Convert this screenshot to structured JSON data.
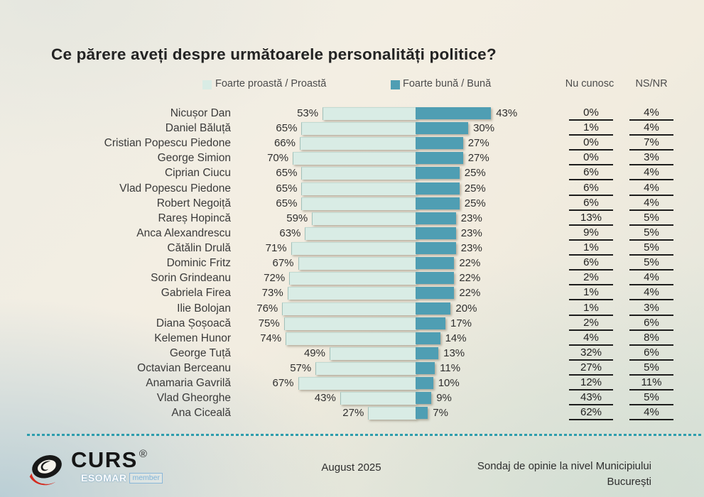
{
  "title": "Ce părere aveți despre următoarele personalități politice?",
  "legend": {
    "bad_label": "Foarte proastă / Proastă",
    "good_label": "Foarte bună / Bună"
  },
  "columns": {
    "nu_cunosc": "Nu cunosc",
    "ns_nr": "NS/NR"
  },
  "colors": {
    "bad_bar": "#d9ece5",
    "good_bar": "#4f9eb3",
    "divider_dots": "#2d9dad",
    "underline": "#1c1c1c"
  },
  "footer": {
    "date": "August 2025",
    "note_line1": "Sondaj de opinie la nivel Municipiului",
    "note_line2": "București",
    "logo": {
      "name": "CURS",
      "reg": "®",
      "esomar": "ESOMAR",
      "member": "member"
    }
  },
  "chart_data": {
    "type": "bar",
    "orientation": "diverging-horizontal",
    "title": "Ce părere aveți despre următoarele personalități politice?",
    "value_suffix": "%",
    "legend_position": "top",
    "categories": [
      "Nicușor Dan",
      "Daniel Băluță",
      "Cristian Popescu Piedone",
      "George Simion",
      "Ciprian Ciucu",
      "Vlad Popescu Piedone",
      "Robert Negoiță",
      "Rareș Hopincă",
      "Anca Alexandrescu",
      "Cătălin Drulă",
      "Dominic Fritz",
      "Sorin Grindeanu",
      "Gabriela Firea",
      "Ilie Bolojan",
      "Diana Șoșoacă",
      "Kelemen Hunor",
      "George Tuță",
      "Octavian Berceanu",
      "Anamaria Gavrilă",
      "Vlad Gheorghe",
      "Ana Ciceală"
    ],
    "series": [
      {
        "name": "Foarte proastă / Proastă",
        "side": "left",
        "color": "#d9ece5",
        "values": [
          53,
          65,
          66,
          70,
          65,
          65,
          65,
          59,
          63,
          71,
          67,
          72,
          73,
          76,
          75,
          74,
          49,
          57,
          67,
          43,
          27
        ]
      },
      {
        "name": "Foarte bună / Bună",
        "side": "right",
        "color": "#4f9eb3",
        "values": [
          43,
          30,
          27,
          27,
          25,
          25,
          25,
          23,
          23,
          23,
          22,
          22,
          22,
          20,
          17,
          14,
          13,
          11,
          10,
          9,
          7
        ]
      },
      {
        "name": "Nu cunosc",
        "display": "underlined-number-column",
        "values": [
          0,
          1,
          0,
          0,
          6,
          6,
          6,
          13,
          9,
          1,
          6,
          2,
          1,
          1,
          2,
          4,
          32,
          27,
          12,
          43,
          62
        ]
      },
      {
        "name": "NS/NR",
        "display": "underlined-number-column",
        "values": [
          4,
          4,
          7,
          3,
          4,
          4,
          4,
          5,
          5,
          5,
          5,
          4,
          4,
          3,
          6,
          8,
          6,
          5,
          11,
          5,
          4
        ]
      }
    ]
  }
}
